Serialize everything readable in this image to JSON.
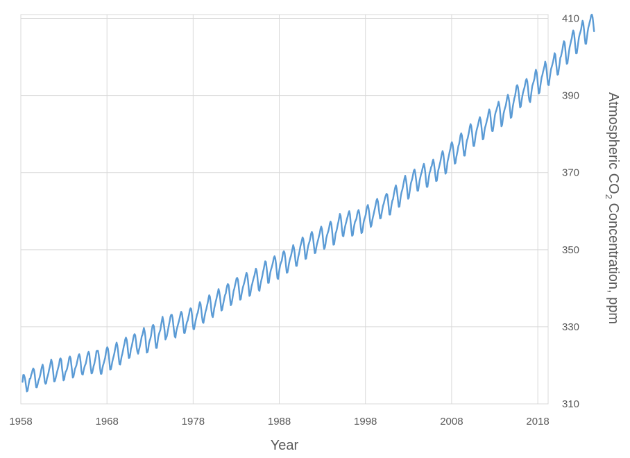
{
  "chart_data": {
    "type": "line",
    "title": "",
    "xlabel": "Year",
    "ylabel_parts": {
      "pre": "Atmospheric CO",
      "sub": "2",
      "post": " Concentration, ppm"
    },
    "xlim": [
      1958,
      2019.2
    ],
    "ylim": [
      310,
      411
    ],
    "x_ticks": [
      1958,
      1968,
      1978,
      1988,
      1998,
      2008,
      2018
    ],
    "x_tick_labels": [
      "1958",
      "1968",
      "1978",
      "1988",
      "1998",
      "2008",
      "2018"
    ],
    "y_ticks": [
      310,
      330,
      350,
      370,
      390,
      410
    ],
    "y_tick_labels": [
      "310",
      "330",
      "350",
      "370",
      "390",
      "410"
    ],
    "grid": true,
    "y_axis_side": "right",
    "series_color": "#5b9bd5",
    "grid_color": "#d9d9d9",
    "series": [
      {
        "x_start": 1958.2,
        "x_step": 0.08333,
        "values": [
          315.7,
          317.5,
          317.5,
          316.9,
          315.9,
          314.5,
          313.2,
          313.4,
          314.5,
          315.6,
          316.5,
          316.6,
          317.5,
          318.0,
          318.8,
          319.2,
          318.8,
          317.6,
          315.8,
          314.3,
          314.3,
          315.0,
          315.9,
          316.4,
          317.0,
          317.8,
          318.8,
          319.6,
          320.2,
          319.3,
          317.3,
          315.7,
          315.2,
          315.4,
          316.6,
          317.2,
          317.9,
          318.9,
          319.6,
          320.6,
          321.5,
          320.8,
          319.5,
          317.6,
          315.8,
          315.9,
          316.6,
          317.4,
          318.2,
          318.9,
          319.6,
          320.4,
          321.6,
          321.8,
          321.3,
          319.2,
          317.8,
          316.1,
          316.3,
          317.5,
          318.3,
          318.6,
          319.1,
          320.0,
          320.8,
          322.0,
          322.3,
          321.8,
          320.1,
          318.5,
          316.8,
          317.1,
          318.0,
          319.1,
          319.5,
          320.0,
          320.9,
          321.7,
          322.6,
          322.9,
          322.2,
          320.7,
          318.5,
          317.7,
          317.6,
          318.6,
          319.4,
          320.0,
          320.4,
          321.3,
          322.3,
          323.1,
          323.5,
          323.0,
          321.1,
          319.4,
          317.9,
          318.0,
          318.9,
          319.8,
          320.4,
          321.4,
          322.3,
          323.7,
          323.8,
          323.8,
          322.8,
          321.3,
          319.2,
          317.8,
          317.8,
          319.0,
          319.9,
          320.5,
          321.2,
          321.9,
          323.1,
          324.2,
          324.7,
          324.3,
          322.9,
          320.9,
          318.9,
          319.0,
          319.8,
          320.9,
          321.7,
          322.4,
          323.2,
          324.3,
          325.2,
          325.9,
          325.2,
          323.8,
          321.9,
          320.3,
          320.2,
          321.2,
          322.3,
          323.0,
          323.9,
          324.9,
          325.6,
          326.7,
          327.2,
          326.7,
          325.4,
          323.5,
          321.9,
          322.0,
          322.9,
          324.3,
          324.9,
          325.8,
          326.8,
          327.7,
          328.1,
          327.8,
          326.3,
          324.6,
          323.5,
          323.0,
          323.9,
          324.6,
          325.5,
          326.4,
          327.5,
          327.9,
          328.8,
          329.7,
          328.9,
          327.6,
          325.4,
          323.3,
          323.4,
          324.1,
          325.6,
          326.4,
          326.9,
          327.7,
          329.1,
          330.2,
          330.5,
          330.1,
          328.3,
          326.1,
          324.5,
          324.5,
          325.9,
          327.3,
          328.1,
          328.7,
          329.2,
          330.5,
          331.5,
          332.6,
          331.6,
          330.4,
          328.8,
          326.7,
          327.1,
          327.6,
          328.6,
          329.6,
          330.6,
          331.5,
          332.6,
          333.1,
          333.1,
          332.3,
          330.5,
          328.9,
          327.5,
          327.2,
          328.6,
          329.5,
          330.2,
          330.9,
          331.6,
          332.4,
          333.3,
          333.9,
          333.5,
          332.1,
          330.1,
          328.4,
          328.4,
          329.3,
          330.4,
          331.2,
          331.6,
          332.5,
          333.3,
          334.4,
          334.8,
          334.6,
          333.1,
          330.9,
          329.4,
          329.4,
          330.5,
          331.5,
          332.3,
          333.2,
          333.6,
          334.5,
          335.7,
          336.4,
          335.9,
          334.4,
          332.5,
          331.2,
          331.0,
          332.1,
          333.1,
          334.0,
          334.6,
          335.5,
          336.3,
          337.4,
          338.2,
          337.8,
          336.3,
          334.3,
          332.9,
          332.5,
          333.5,
          334.8,
          335.6,
          336.5,
          337.2,
          338.1,
          338.9,
          339.8,
          339.1,
          337.8,
          336.0,
          334.2,
          334.4,
          335.5,
          336.4,
          337.4,
          338.2,
          338.6,
          339.8,
          340.7,
          341.1,
          340.8,
          339.2,
          337.2,
          335.6,
          335.9,
          336.9,
          338.1,
          339.3,
          339.9,
          340.8,
          341.6,
          342.5,
          342.7,
          342.2,
          340.6,
          338.7,
          337.0,
          337.2,
          338.4,
          339.4,
          340.3,
          340.9,
          341.6,
          342.4,
          343.4,
          344.0,
          343.4,
          342.0,
          340.0,
          338.0,
          338.2,
          339.4,
          340.5,
          341.2,
          342.0,
          342.7,
          343.3,
          344.2,
          345.1,
          344.6,
          343.2,
          341.2,
          339.6,
          339.3,
          340.6,
          341.6,
          342.4,
          343.2,
          344.3,
          345.0,
          346.1,
          347.0,
          346.8,
          345.2,
          343.4,
          341.4,
          341.4,
          342.8,
          344.0,
          344.8,
          345.4,
          346.1,
          346.9,
          347.9,
          348.3,
          347.8,
          346.4,
          344.4,
          342.6,
          342.4,
          343.9,
          345.1,
          346.1,
          346.7,
          347.1,
          348.2,
          349.3,
          349.6,
          349.2,
          347.7,
          345.7,
          344.0,
          344.1,
          345.1,
          346.3,
          347.2,
          347.9,
          348.5,
          349.4,
          350.3,
          351.2,
          350.5,
          349.2,
          347.3,
          345.8,
          345.8,
          347.0,
          348.1,
          348.9,
          349.8,
          350.9,
          351.6,
          352.4,
          353.2,
          352.8,
          351.4,
          349.6,
          347.6,
          347.7,
          348.9,
          350.1,
          351.1,
          351.7,
          352.3,
          353.2,
          354.2,
          354.6,
          354.0,
          352.4,
          350.7,
          349.1,
          349.2,
          350.4,
          351.4,
          352.1,
          352.8,
          353.6,
          354.3,
          355.4,
          356.0,
          355.4,
          353.8,
          351.7,
          350.2,
          350.5,
          351.5,
          352.9,
          353.7,
          354.3,
          354.9,
          355.7,
          356.8,
          357.3,
          356.8,
          355.2,
          353.2,
          351.3,
          351.4,
          352.7,
          354.2,
          354.7,
          355.5,
          356.5,
          357.3,
          358.3,
          359.3,
          358.8,
          357.2,
          355.0,
          353.6,
          353.5,
          354.8,
          355.8,
          356.6,
          357.3,
          358.1,
          358.7,
          359.5,
          360.0,
          359.2,
          357.1,
          355.1,
          353.6,
          353.8,
          355.2,
          356.3,
          357.2,
          357.6,
          358.0,
          359.1,
          359.9,
          360.3,
          359.6,
          358.0,
          355.9,
          354.3,
          354.5,
          355.6,
          357.0,
          357.9,
          358.4,
          359.1,
          360.4,
          361.2,
          361.6,
          360.7,
          359.3,
          357.4,
          355.9,
          356.3,
          357.5,
          358.4,
          359.2,
          360.1,
          360.9,
          361.8,
          362.8,
          363.2,
          362.5,
          360.9,
          359.4,
          358.1,
          358.2,
          359.3,
          360.3,
          361.4,
          361.9,
          362.7,
          363.5,
          364.1,
          364.5,
          364.3,
          362.9,
          361.0,
          359.1,
          359.1,
          360.4,
          361.7,
          362.7,
          363.1,
          364.2,
          365.2,
          366.1,
          366.7,
          365.9,
          364.4,
          362.7,
          361.1,
          361.2,
          362.7,
          364.1,
          365.0,
          365.6,
          366.5,
          367.5,
          368.5,
          369.2,
          368.2,
          366.9,
          364.9,
          363.2,
          363.5,
          364.8,
          366.1,
          367.3,
          367.9,
          368.6,
          369.6,
          370.5,
          370.8,
          369.9,
          368.4,
          366.8,
          365.3,
          365.3,
          366.6,
          367.9,
          368.7,
          369.6,
          370.1,
          371.0,
          371.7,
          372.3,
          371.4,
          369.9,
          367.7,
          366.3,
          366.3,
          367.6,
          368.9,
          370.0,
          370.5,
          371.4,
          371.8,
          372.8,
          373.4,
          372.5,
          370.9,
          369.2,
          367.8,
          367.9,
          369.2,
          370.6,
          371.3,
          372.1,
          372.9,
          373.9,
          374.9,
          375.6,
          375.0,
          373.3,
          371.3,
          369.7,
          370.0,
          371.3,
          372.9,
          373.7,
          374.6,
          375.5,
          376.3,
          377.4,
          377.9,
          377.3,
          375.9,
          374.1,
          372.3,
          372.5,
          373.9,
          374.8,
          375.7,
          376.9,
          377.4,
          378.4,
          379.7,
          380.2,
          379.6,
          377.9,
          376.1,
          374.4,
          374.4,
          375.9,
          377.3,
          378.4,
          378.9,
          379.8,
          380.7,
          381.9,
          382.6,
          382.1,
          380.5,
          378.6,
          376.9,
          376.9,
          378.1,
          379.6,
          380.6,
          381.4,
          382.1,
          382.9,
          383.8,
          384.4,
          383.7,
          382.2,
          380.4,
          378.6,
          378.8,
          380.3,
          381.6,
          382.2,
          382.9,
          383.8,
          384.4,
          385.6,
          386.4,
          385.8,
          384.2,
          382.0,
          380.8,
          380.8,
          382.1,
          383.5,
          384.9,
          385.7,
          386.2,
          386.9,
          387.5,
          388.4,
          387.6,
          386.1,
          383.9,
          382.0,
          382.4,
          383.9,
          385.3,
          386.1,
          386.8,
          387.4,
          388.4,
          389.5,
          390.2,
          389.5,
          388.2,
          386.2,
          384.2,
          384.4,
          386.0,
          387.3,
          388.3,
          389.3,
          389.9,
          391.1,
          392.4,
          392.7,
          392.2,
          390.7,
          388.7,
          386.9,
          387.2,
          388.6,
          389.7,
          390.7,
          391.4,
          392.0,
          392.9,
          393.9,
          394.3,
          393.7,
          392.0,
          389.9,
          388.6,
          388.3,
          389.7,
          391.2,
          392.5,
          393.1,
          393.7,
          394.4,
          395.8,
          396.7,
          396.0,
          394.5,
          392.4,
          390.5,
          390.8,
          392.2,
          393.5,
          394.7,
          395.3,
          396.2,
          396.9,
          397.7,
          398.8,
          398.0,
          396.4,
          394.4,
          392.8,
          392.7,
          394.2,
          395.5,
          396.8,
          397.4,
          398.1,
          398.9,
          399.8,
          401.0,
          400.6,
          398.7,
          397.0,
          395.4,
          395.5,
          396.9,
          398.2,
          399.8,
          400.2,
          401.1,
          402.0,
          403.2,
          404.1,
          403.8,
          402.0,
          399.6,
          398.2,
          398.4,
          399.9,
          401.3,
          402.5,
          403.3,
          404.2,
          404.9,
          406.2,
          406.9,
          406.3,
          404.6,
          402.4,
          400.9,
          401.0,
          402.4,
          403.8,
          405.1,
          405.9,
          406.5,
          407.2,
          408.4,
          409.4,
          408.8,
          407.1,
          405.0,
          403.4,
          403.4,
          405.0,
          406.4,
          407.6,
          408.3,
          409.1,
          409.8,
          410.8,
          411.0,
          410.3,
          408.6,
          406.7
        ]
      }
    ]
  }
}
